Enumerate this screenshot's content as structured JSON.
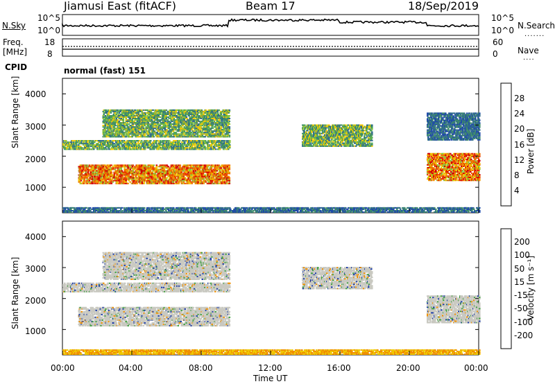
{
  "header": {
    "station": "Jiamusi East (fitACF)",
    "beam": "Beam 17",
    "date": "18/Sep/2019"
  },
  "noise_panel": {
    "left_label": "N.Sky",
    "right_label": "N.Search",
    "ticks": [
      "10^5",
      "10^0"
    ]
  },
  "freq_panel": {
    "left_label_1": "Freq.",
    "left_label_2": "[MHz]",
    "left_ticks": [
      "18",
      "8"
    ],
    "right_label": "Nave",
    "right_ticks": [
      "60",
      "0"
    ],
    "cpid_label": "CPID",
    "cpid_value": "normal (fast) 151"
  },
  "chart_data": [
    {
      "type": "heatmap",
      "name": "power",
      "ylabel": "Slant Range [km]",
      "yticks": [
        "4000",
        "3000",
        "2000",
        "1000"
      ],
      "ylim": [
        180,
        4500
      ],
      "xlim": [
        0,
        24
      ],
      "colorbar_label": "Power [dB]",
      "colorbar_ticks": [
        "28",
        "24",
        "20",
        "16",
        "12",
        "8",
        "4"
      ],
      "colorbar_colors": [
        "#0000ff",
        "#1f4aa8",
        "#2f6a8a",
        "#3d8a6a",
        "#4ea84e",
        "#8cc43a",
        "#f0c800",
        "#f09a00",
        "#f06a00",
        "#e83000",
        "#d00000"
      ],
      "bands": [
        {
          "t0": 0.9,
          "t1": 9.6,
          "r0": 1100,
          "r1": 1700,
          "level": "high"
        },
        {
          "t0": 0.0,
          "t1": 9.6,
          "r0": 2200,
          "r1": 2500,
          "level": "mid"
        },
        {
          "t0": 2.3,
          "t1": 9.6,
          "r0": 2600,
          "r1": 3500,
          "level": "mid"
        },
        {
          "t0": 13.8,
          "t1": 17.8,
          "r0": 2300,
          "r1": 3000,
          "level": "mid"
        },
        {
          "t0": 21.0,
          "t1": 24.0,
          "r0": 1200,
          "r1": 2100,
          "level": "high"
        },
        {
          "t0": 21.0,
          "t1": 24.0,
          "r0": 2500,
          "r1": 3400,
          "level": "low"
        },
        {
          "t0": 0.0,
          "t1": 24.0,
          "r0": 180,
          "r1": 320,
          "level": "low"
        }
      ]
    },
    {
      "type": "heatmap",
      "name": "velocity",
      "ylabel": "Slant Range [km]",
      "yticks": [
        "4000",
        "3000",
        "2000",
        "1000"
      ],
      "ylim": [
        180,
        4500
      ],
      "xlim": [
        0,
        24
      ],
      "xticks": [
        "00:00",
        "04:00",
        "08:00",
        "12:00",
        "16:00",
        "20:00",
        "00:00"
      ],
      "xlabel": "Time UT",
      "colorbar_label": "Velocity [m s⁻¹]",
      "colorbar_ticks": [
        "200",
        "100",
        "50",
        "15",
        "-15",
        "-50",
        "-100",
        "-200"
      ],
      "colorbar_colors": [
        "#e00000",
        "#f05000",
        "#f09000",
        "#f0c800",
        "#c8c8c0",
        "#c8c8c0",
        "#78c850",
        "#40a040",
        "#2a7a90",
        "#1a3aa8",
        "#0000d0"
      ],
      "bands": [
        {
          "t0": 0.9,
          "t1": 9.6,
          "r0": 1100,
          "r1": 1700,
          "level": "grey"
        },
        {
          "t0": 0.0,
          "t1": 9.6,
          "r0": 2200,
          "r1": 2500,
          "level": "grey"
        },
        {
          "t0": 2.3,
          "t1": 9.6,
          "r0": 2600,
          "r1": 3500,
          "level": "grey"
        },
        {
          "t0": 13.8,
          "t1": 17.8,
          "r0": 2300,
          "r1": 3000,
          "level": "grey"
        },
        {
          "t0": 21.0,
          "t1": 24.0,
          "r0": 1200,
          "r1": 2100,
          "level": "grey"
        },
        {
          "t0": 0.0,
          "t1": 24.0,
          "r0": 180,
          "r1": 320,
          "level": "orange"
        }
      ]
    }
  ]
}
